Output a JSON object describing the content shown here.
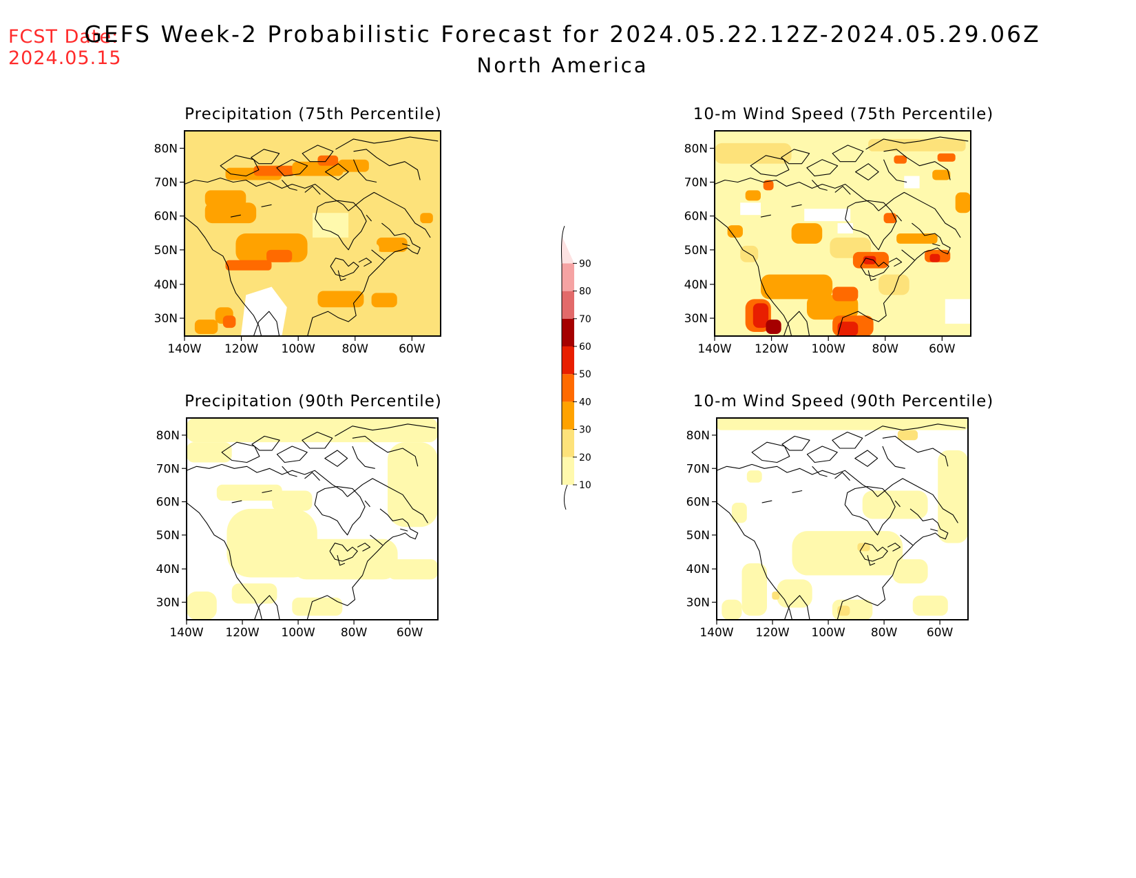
{
  "header": {
    "fcst_label": "FCST Date:",
    "fcst_date": "2024.05.15",
    "title": "GEFS Week-2 Probabilistic Forecast for 2024.05.22.12Z-2024.05.29.06Z",
    "subtitle": "North America"
  },
  "axes": {
    "lat_ticks": [
      "80N",
      "70N",
      "60N",
      "50N",
      "40N",
      "30N"
    ],
    "lon_ticks": [
      "140W",
      "120W",
      "100W",
      "80W",
      "60W"
    ]
  },
  "panels": [
    {
      "id": "precip75",
      "title": "Precipitation (75th Percentile)",
      "coverage": "high"
    },
    {
      "id": "wind75",
      "title": "10-m Wind Speed (75th Percentile)",
      "coverage": "high-wind"
    },
    {
      "id": "precip90",
      "title": "Precipitation (90th Percentile)",
      "coverage": "low"
    },
    {
      "id": "wind90",
      "title": "10-m Wind Speed (90th Percentile)",
      "coverage": "low-wind"
    }
  ],
  "colorbar": {
    "levels": [
      "10",
      "20",
      "30",
      "40",
      "50",
      "60",
      "70",
      "80",
      "90"
    ],
    "colors": [
      "#fff9ad",
      "#fde27a",
      "#ffa200",
      "#ff6a00",
      "#e81e00",
      "#a50000",
      "#e26a6a",
      "#f5a3a3",
      "#fde2e2"
    ]
  }
}
